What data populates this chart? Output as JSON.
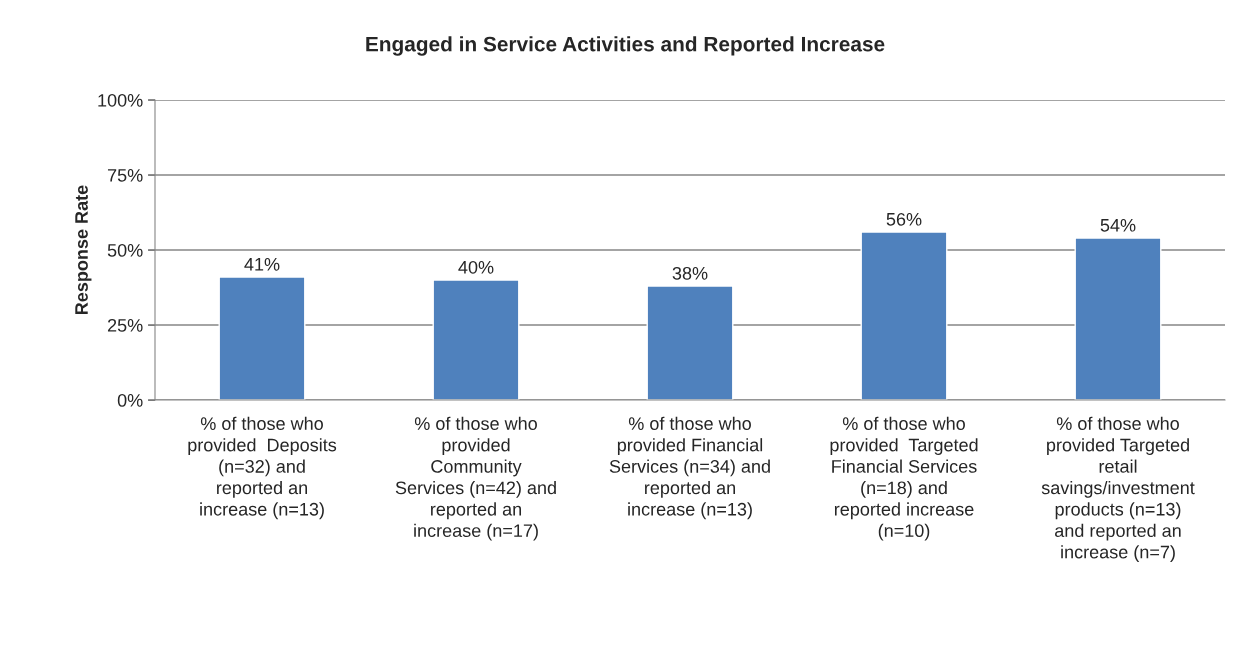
{
  "chart_data": {
    "type": "bar",
    "title": "Engaged in Service Activities and Reported Increase",
    "ylabel": "Response Rate",
    "categories": [
      "% of those who\nprovided  Deposits\n(n=32) and\nreported an\nincrease (n=13)",
      "% of those who\nprovided\nCommunity\nServices (n=42) and\nreported an\nincrease (n=17)",
      "% of those who\nprovided Financial\nServices (n=34) and\nreported an\nincrease (n=13)",
      "% of those who\nprovided  Targeted\nFinancial Services\n(n=18) and\nreported increase\n(n=10)",
      "% of those who\nprovided Targeted\nretail\nsavings/investment\nproducts (n=13)\nand reported an\nincrease (n=7)"
    ],
    "values": [
      41,
      40,
      38,
      56,
      54
    ],
    "value_labels": [
      "41%",
      "40%",
      "38%",
      "56%",
      "54%"
    ],
    "color": "#4f81bd",
    "ylim": [
      0,
      100
    ],
    "yticks": [
      {
        "value": 0,
        "label": "0%"
      },
      {
        "value": 25,
        "label": "25%"
      },
      {
        "value": 50,
        "label": "50%"
      },
      {
        "value": 75,
        "label": "75%"
      },
      {
        "value": 100,
        "label": "100%"
      }
    ],
    "grid": "y",
    "legend": false
  }
}
